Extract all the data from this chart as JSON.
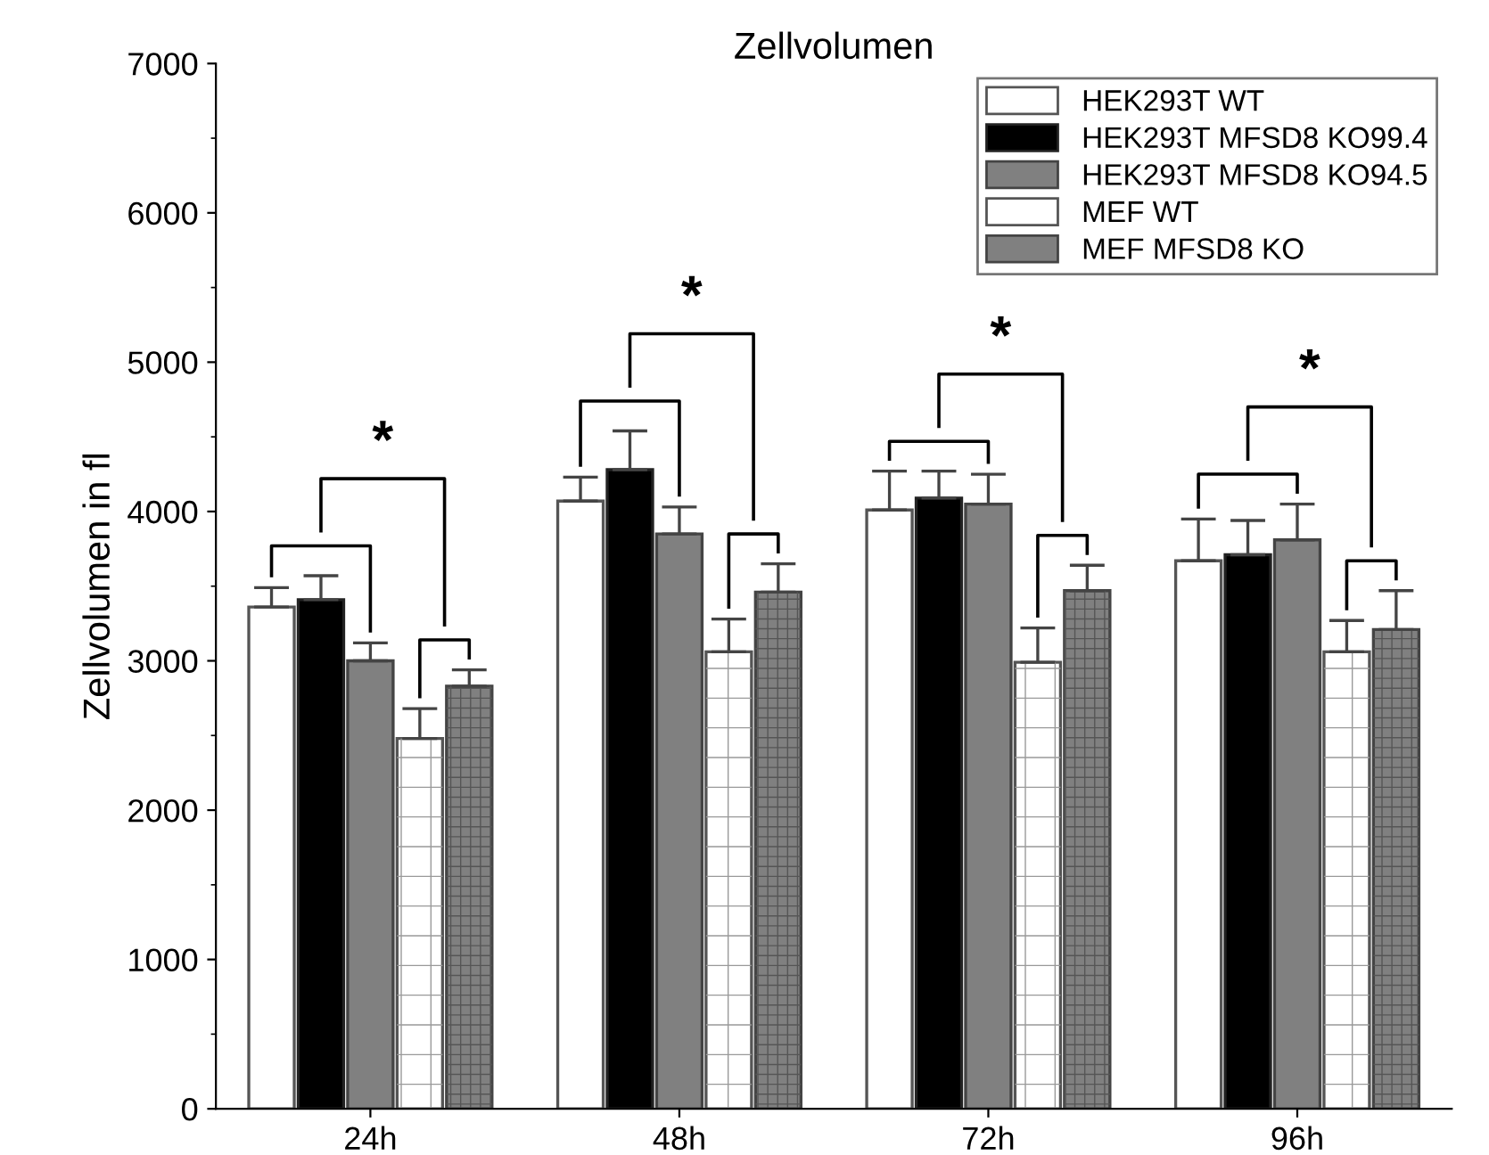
{
  "chart_data": {
    "type": "bar",
    "title": "Zellvolumen",
    "ylabel": "Zellvolumen in fl",
    "categories": [
      "24h",
      "48h",
      "72h",
      "96h"
    ],
    "series": [
      {
        "name": "HEK293T WT",
        "color": "#ffffff",
        "values": [
          3360,
          4070,
          4010,
          3670
        ],
        "errors": [
          130,
          160,
          260,
          280
        ]
      },
      {
        "name": "HEK293T MFSD8 KO99.4",
        "color": "#000000",
        "values": [
          3410,
          4280,
          4090,
          3710
        ],
        "errors": [
          160,
          260,
          180,
          230
        ]
      },
      {
        "name": "HEK293T MFSD8 KO94.5",
        "color": "#808080",
        "values": [
          3000,
          3850,
          4050,
          3810
        ],
        "errors": [
          120,
          180,
          200,
          240
        ]
      },
      {
        "name": "MEF WT",
        "color": "#ffffff",
        "values": [
          2480,
          3060,
          2990,
          3060
        ],
        "errors": [
          200,
          220,
          230,
          210
        ]
      },
      {
        "name": "MEF MFSD8 KO",
        "color": "#808080",
        "values": [
          2830,
          3460,
          3470,
          3210
        ],
        "errors": [
          110,
          190,
          170,
          260
        ]
      }
    ],
    "ylim": [
      0,
      7000
    ],
    "yticks": [
      0,
      1000,
      2000,
      3000,
      4000,
      5000,
      6000,
      7000
    ],
    "legend": "top right",
    "grid": false,
    "annotations": [
      "*",
      "*",
      "*",
      "*"
    ]
  }
}
